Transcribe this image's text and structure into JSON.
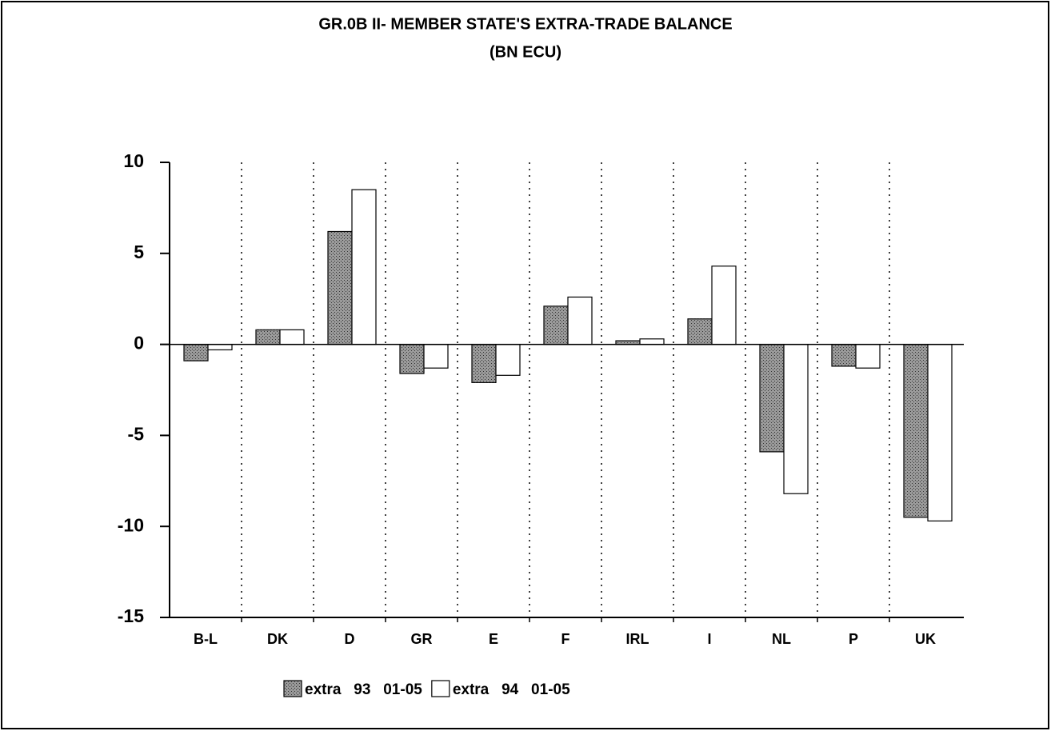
{
  "chart_data": {
    "type": "bar",
    "title": "GR.0B II- MEMBER STATE'S EXTRA-TRADE BALANCE",
    "subtitle": "(BN ECU)",
    "categories": [
      "B-L",
      "DK",
      "D",
      "GR",
      "E",
      "F",
      "IRL",
      "I",
      "NL",
      "P",
      "UK"
    ],
    "series": [
      {
        "name": "extra   93   01-05",
        "color": "#9a9a9a",
        "values": [
          -0.9,
          0.8,
          6.2,
          -1.6,
          -2.1,
          2.1,
          0.2,
          1.4,
          -5.9,
          -1.2,
          -9.5
        ]
      },
      {
        "name": "extra   94   01-05",
        "color": "#ffffff",
        "values": [
          -0.3,
          0.8,
          8.5,
          -1.3,
          -1.7,
          2.6,
          0.3,
          4.3,
          -8.2,
          -1.3,
          -9.7
        ]
      }
    ],
    "ylim": [
      -15,
      10
    ],
    "yticks": [
      -15,
      -10,
      -5,
      0,
      5,
      10
    ],
    "legend": "bottom"
  }
}
